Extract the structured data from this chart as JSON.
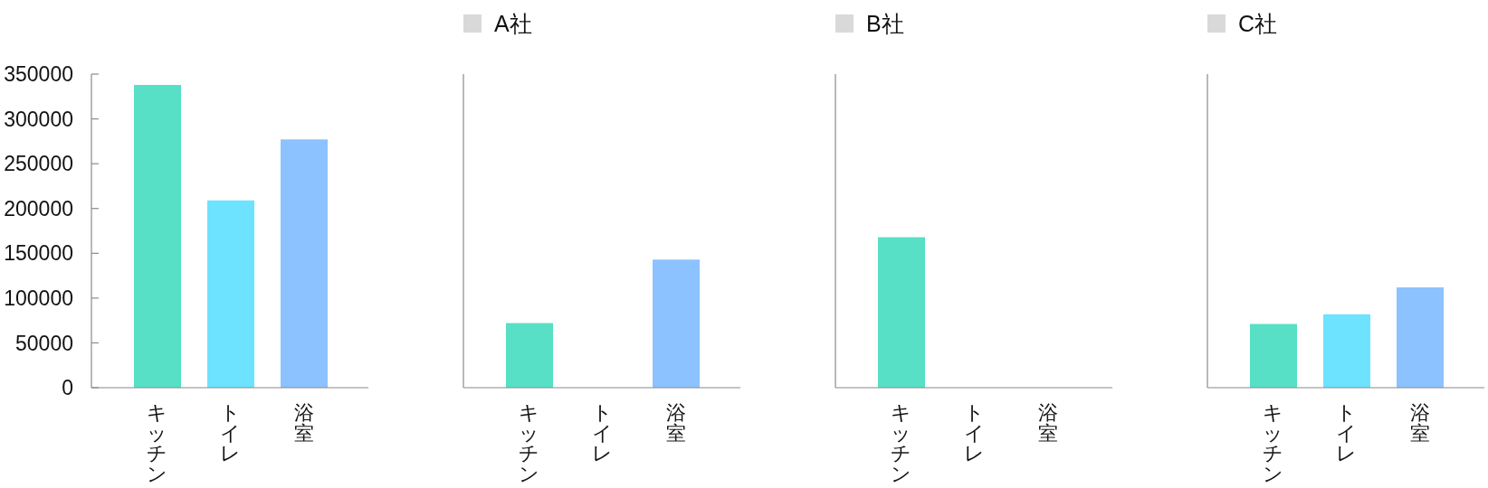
{
  "chart_data": [
    {
      "type": "bar",
      "categories": [
        "キッチン",
        "トイレ",
        "浴室"
      ],
      "series": [
        {
          "values": [
            338000,
            209000,
            277000
          ],
          "colors": [
            "#57e0c6",
            "#6de3ff",
            "#8cc2ff"
          ]
        }
      ],
      "ylim": [
        0,
        350000
      ],
      "yticks": [
        0,
        50000,
        100000,
        150000,
        200000,
        250000,
        300000,
        350000
      ]
    },
    {
      "type": "bar",
      "categories": [
        "キッチン",
        "トイレ",
        "浴室"
      ],
      "series": [
        {
          "name": "A社",
          "values": [
            72000,
            0,
            143000
          ],
          "colors": [
            "#57e0c6",
            "#6de3ff",
            "#8cc2ff"
          ]
        }
      ],
      "ylim": [
        0,
        350000
      ],
      "yticks": [
        0,
        50000,
        100000,
        150000,
        200000,
        250000,
        300000,
        350000
      ],
      "legend": "top left",
      "tick_labels": "x"
    },
    {
      "type": "bar",
      "categories": [
        "キッチン",
        "トイレ",
        "浴室"
      ],
      "series": [
        {
          "name": "B社",
          "values": [
            168000,
            0,
            0
          ],
          "colors": [
            "#57e0c6",
            "#6de3ff",
            "#8cc2ff"
          ]
        }
      ],
      "ylim": [
        0,
        350000
      ],
      "yticks": [
        0,
        50000,
        100000,
        150000,
        200000,
        250000,
        300000,
        350000
      ],
      "legend": "top left",
      "tick_labels": "x"
    },
    {
      "type": "bar",
      "categories": [
        "キッチン",
        "トイレ",
        "浴室"
      ],
      "series": [
        {
          "name": "C社",
          "values": [
            71000,
            82000,
            112000
          ],
          "colors": [
            "#57e0c6",
            "#6de3ff",
            "#8cc2ff"
          ]
        }
      ],
      "ylim": [
        0,
        350000
      ],
      "yticks": [
        0,
        50000,
        100000,
        150000,
        200000,
        250000,
        300000,
        350000
      ],
      "legend": "top left",
      "tick_labels": "x"
    }
  ]
}
